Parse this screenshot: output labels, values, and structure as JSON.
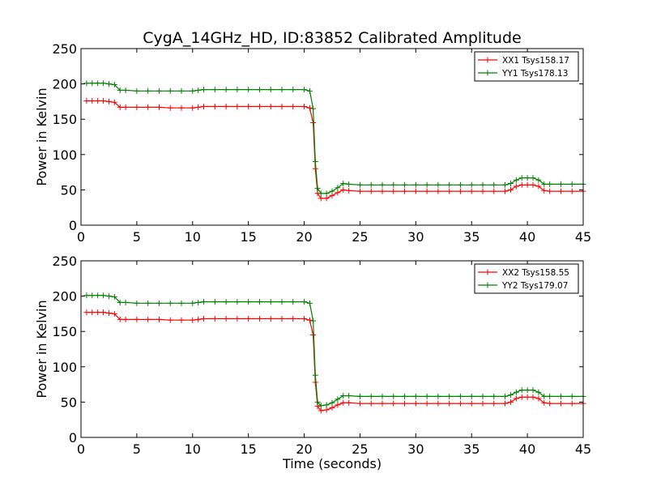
{
  "title": "CygA_14GHz_HD, ID:83852 Calibrated Amplitude",
  "chart_data": [
    {
      "type": "line",
      "ylabel": "Power in Kelvin",
      "xlabel": "",
      "xlim": [
        0,
        45
      ],
      "ylim": [
        0,
        250
      ],
      "xticks": [
        0,
        5,
        10,
        15,
        20,
        25,
        30,
        35,
        40,
        45
      ],
      "yticks": [
        0,
        50,
        100,
        150,
        200,
        250
      ],
      "legend": "top-right",
      "grid": false,
      "x": [
        0.5,
        1,
        1.5,
        2,
        2.5,
        3,
        3.5,
        4,
        5,
        6,
        7,
        8,
        9,
        10,
        10.5,
        11,
        12,
        13,
        14,
        15,
        16,
        17,
        18,
        19,
        20,
        20.5,
        20.8,
        21,
        21.2,
        21.5,
        22,
        22.5,
        23,
        23.5,
        24,
        25,
        26,
        27,
        28,
        29,
        30,
        31,
        32,
        33,
        34,
        35,
        36,
        37,
        38,
        38.5,
        39,
        39.5,
        40,
        40.5,
        41,
        41.5,
        42,
        43,
        44,
        45
      ],
      "series": [
        {
          "name": "XX1 Tsys158.17",
          "color": "#ff0000",
          "values": [
            176,
            176,
            176,
            176,
            175,
            174,
            167,
            167,
            167,
            167,
            167,
            166,
            166,
            166,
            167,
            168,
            168,
            168,
            168,
            168,
            168,
            168,
            168,
            168,
            168,
            166,
            145,
            80,
            45,
            38,
            38,
            42,
            46,
            50,
            49,
            48,
            48,
            48,
            48,
            48,
            48,
            48,
            48,
            48,
            48,
            48,
            48,
            48,
            48,
            50,
            55,
            57,
            57,
            57,
            55,
            49,
            48,
            48,
            48,
            48
          ]
        },
        {
          "name": "YY1 Tsys178.13",
          "color": "#008000",
          "values": [
            201,
            201,
            201,
            201,
            200,
            199,
            191,
            191,
            190,
            190,
            190,
            190,
            190,
            190,
            191,
            192,
            192,
            192,
            192,
            192,
            192,
            192,
            192,
            192,
            192,
            190,
            165,
            90,
            52,
            45,
            45,
            48,
            53,
            59,
            58,
            57,
            57,
            57,
            57,
            57,
            57,
            57,
            57,
            57,
            57,
            57,
            57,
            57,
            57,
            59,
            64,
            67,
            67,
            67,
            64,
            58,
            58,
            58,
            58,
            58
          ]
        }
      ]
    },
    {
      "type": "line",
      "ylabel": "Power in Kelvin",
      "xlabel": "Time (seconds)",
      "xlim": [
        0,
        45
      ],
      "ylim": [
        0,
        250
      ],
      "xticks": [
        0,
        5,
        10,
        15,
        20,
        25,
        30,
        35,
        40,
        45
      ],
      "yticks": [
        0,
        50,
        100,
        150,
        200,
        250
      ],
      "legend": "top-right",
      "grid": false,
      "x": [
        0.5,
        1,
        1.5,
        2,
        2.5,
        3,
        3.5,
        4,
        5,
        6,
        7,
        8,
        9,
        10,
        10.5,
        11,
        12,
        13,
        14,
        15,
        16,
        17,
        18,
        19,
        20,
        20.5,
        20.8,
        21,
        21.2,
        21.5,
        22,
        22.5,
        23,
        23.5,
        24,
        25,
        26,
        27,
        28,
        29,
        30,
        31,
        32,
        33,
        34,
        35,
        36,
        37,
        38,
        38.5,
        39,
        39.5,
        40,
        40.5,
        41,
        41.5,
        42,
        43,
        44,
        45
      ],
      "series": [
        {
          "name": "XX2 Tsys158.55",
          "color": "#ff0000",
          "values": [
            177,
            177,
            177,
            177,
            176,
            175,
            167,
            167,
            167,
            167,
            167,
            166,
            166,
            166,
            167,
            168,
            168,
            168,
            168,
            168,
            168,
            168,
            168,
            168,
            168,
            166,
            145,
            78,
            44,
            38,
            39,
            42,
            46,
            49,
            49,
            48,
            48,
            48,
            48,
            48,
            48,
            48,
            48,
            48,
            48,
            48,
            48,
            48,
            48,
            50,
            55,
            57,
            57,
            57,
            55,
            49,
            48,
            48,
            48,
            48
          ]
        },
        {
          "name": "YY2 Tsys179.07",
          "color": "#008000",
          "values": [
            201,
            201,
            201,
            201,
            200,
            199,
            191,
            191,
            190,
            190,
            190,
            190,
            190,
            190,
            191,
            192,
            192,
            192,
            192,
            192,
            192,
            192,
            192,
            192,
            192,
            190,
            165,
            88,
            50,
            45,
            46,
            49,
            54,
            59,
            59,
            58,
            58,
            58,
            58,
            58,
            58,
            58,
            58,
            58,
            58,
            58,
            58,
            58,
            58,
            60,
            64,
            67,
            67,
            67,
            64,
            58,
            58,
            58,
            58,
            58
          ]
        }
      ]
    }
  ]
}
